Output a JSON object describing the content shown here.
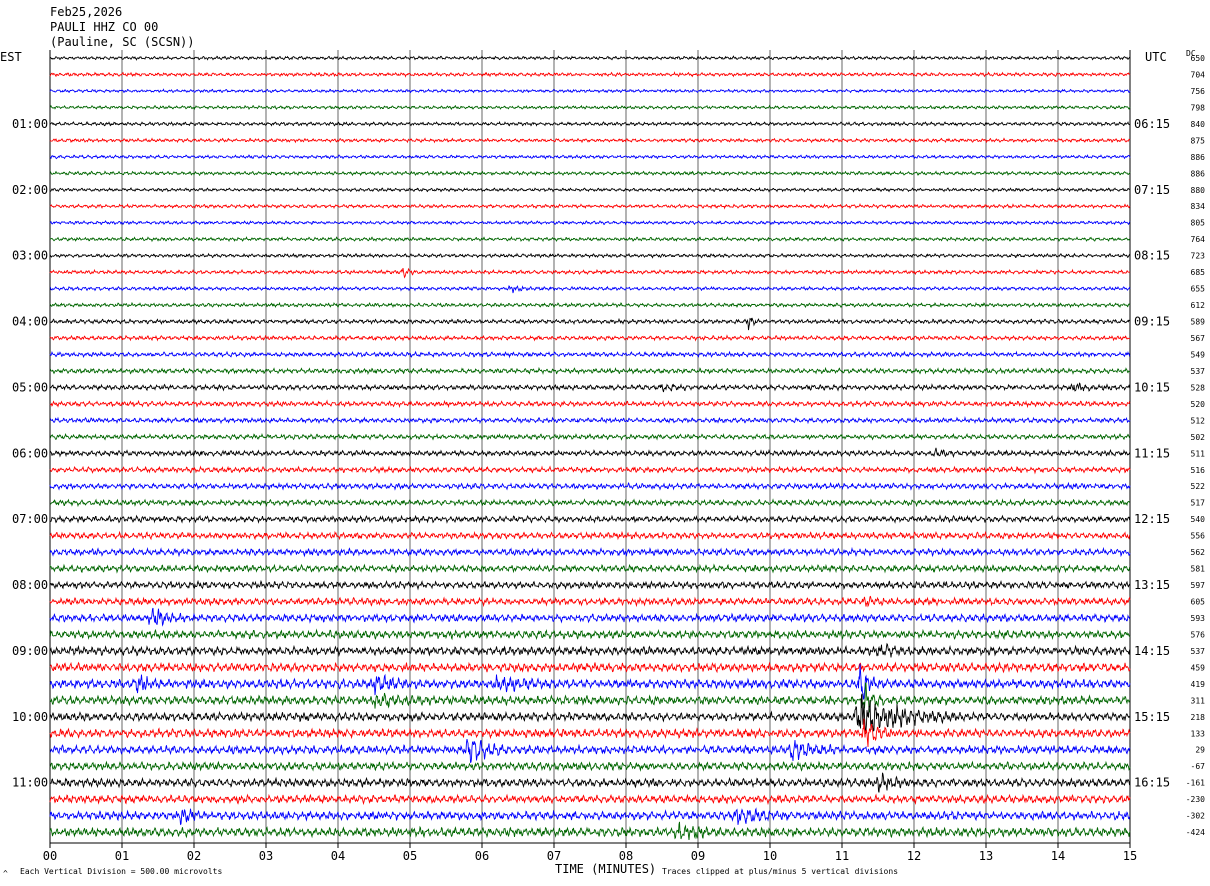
{
  "header": {
    "date": "Feb25,2026",
    "station": "PAULI HHZ CO 00",
    "location": "(Pauline, SC (SCSN))"
  },
  "left_zone_label": "EST",
  "right_zone_label": "UTC",
  "dc_label": "DC",
  "colors": {
    "black": "#000000",
    "red": "#ff0000",
    "blue": "#0000ff",
    "green": "#006600",
    "grid": "#000000"
  },
  "footer": {
    "scale_text": "Each Vertical Division =  500.00 microvolts",
    "xlabel": "TIME (MINUTES)",
    "clip_text": "Traces clipped at plus/minus 5 vertical divisions",
    "corner_mark": "^"
  },
  "chart_data": {
    "type": "line",
    "subtype": "helicorder",
    "xlabel": "TIME (MINUTES)",
    "x_range": [
      0,
      15
    ],
    "x_ticks": [
      "00",
      "01",
      "02",
      "03",
      "04",
      "05",
      "06",
      "07",
      "08",
      "09",
      "10",
      "11",
      "12",
      "13",
      "14",
      "15"
    ],
    "trace_colors_cycle": [
      "black",
      "red",
      "blue",
      "green"
    ],
    "left_hour_labels": [
      "01:00",
      "02:00",
      "03:00",
      "04:00",
      "05:00",
      "06:00",
      "07:00",
      "08:00",
      "09:00",
      "10:00",
      "11:00"
    ],
    "right_hour_labels": [
      "06:15",
      "07:15",
      "08:15",
      "09:15",
      "10:15",
      "11:15",
      "12:15",
      "13:15",
      "14:15",
      "15:15",
      "16:15"
    ],
    "hour_label_line_indices": [
      4,
      8,
      12,
      16,
      20,
      24,
      28,
      32,
      36,
      40,
      44
    ],
    "dc_offsets": [
      650,
      704,
      756,
      798,
      840,
      875,
      886,
      886,
      880,
      834,
      805,
      764,
      723,
      685,
      655,
      612,
      589,
      567,
      549,
      537,
      528,
      520,
      512,
      502,
      511,
      516,
      522,
      517,
      540,
      556,
      562,
      581,
      597,
      605,
      593,
      576,
      537,
      459,
      419,
      311,
      218,
      133,
      29,
      -67,
      -161,
      -230,
      -302,
      -424
    ],
    "line_activity": [
      1.2,
      1.3,
      1.1,
      1.2,
      1.3,
      1.3,
      1.2,
      1.3,
      1.2,
      1.3,
      1.2,
      1.3,
      1.3,
      1.4,
      1.3,
      1.4,
      1.6,
      1.6,
      1.7,
      1.8,
      1.9,
      1.9,
      1.8,
      1.8,
      2.0,
      2.0,
      2.1,
      2.1,
      2.3,
      2.4,
      2.5,
      2.5,
      2.6,
      2.7,
      2.9,
      3.0,
      3.2,
      3.3,
      3.4,
      3.3,
      3.2,
      3.2,
      3.1,
      3.0,
      3.1,
      3.0,
      3.2,
      3.4
    ],
    "events": [
      {
        "line": 13,
        "minute": 4.9,
        "amplitude": 4,
        "duration_min": 0.1
      },
      {
        "line": 14,
        "minute": 6.4,
        "amplitude": 3,
        "duration_min": 0.2
      },
      {
        "line": 16,
        "minute": 9.7,
        "amplitude": 5,
        "duration_min": 0.1
      },
      {
        "line": 20,
        "minute": 8.5,
        "amplitude": 3,
        "duration_min": 0.3
      },
      {
        "line": 20,
        "minute": 14.2,
        "amplitude": 3,
        "duration_min": 0.4
      },
      {
        "line": 24,
        "minute": 12.3,
        "amplitude": 3,
        "duration_min": 0.2
      },
      {
        "line": 33,
        "minute": 11.3,
        "amplitude": 4,
        "duration_min": 0.2
      },
      {
        "line": 34,
        "minute": 1.4,
        "amplitude": 9,
        "duration_min": 0.3
      },
      {
        "line": 36,
        "minute": 11.5,
        "amplitude": 4,
        "duration_min": 0.4
      },
      {
        "line": 38,
        "minute": 1.2,
        "amplitude": 8,
        "duration_min": 0.2
      },
      {
        "line": 38,
        "minute": 4.5,
        "amplitude": 6,
        "duration_min": 0.4
      },
      {
        "line": 38,
        "minute": 6.2,
        "amplitude": 5,
        "duration_min": 0.6
      },
      {
        "line": 38,
        "minute": 11.25,
        "amplitude": 22,
        "duration_min": 0.15
      },
      {
        "line": 39,
        "minute": 4.5,
        "amplitude": 5,
        "duration_min": 0.6
      },
      {
        "line": 39,
        "minute": 11.3,
        "amplitude": 14,
        "duration_min": 0.2
      },
      {
        "line": 40,
        "minute": 11.2,
        "amplitude": 20,
        "duration_min": 0.9
      },
      {
        "line": 41,
        "minute": 11.3,
        "amplitude": 10,
        "duration_min": 0.3
      },
      {
        "line": 42,
        "minute": 5.8,
        "amplitude": 12,
        "duration_min": 0.4
      },
      {
        "line": 42,
        "minute": 10.3,
        "amplitude": 9,
        "duration_min": 0.4
      },
      {
        "line": 44,
        "minute": 11.5,
        "amplitude": 6,
        "duration_min": 0.3
      },
      {
        "line": 46,
        "minute": 1.8,
        "amplitude": 5,
        "duration_min": 0.3
      },
      {
        "line": 46,
        "minute": 9.5,
        "amplitude": 5,
        "duration_min": 0.6
      },
      {
        "line": 47,
        "minute": 8.7,
        "amplitude": 6,
        "duration_min": 0.4
      }
    ]
  }
}
